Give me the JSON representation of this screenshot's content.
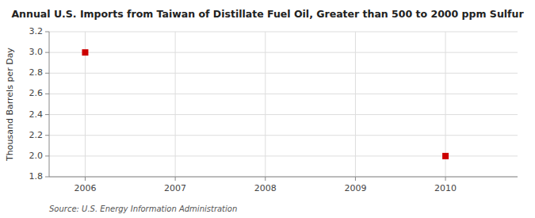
{
  "chart_data": {
    "type": "scatter",
    "title": "Annual U.S. Imports from Taiwan of Distillate Fuel Oil, Greater than 500 to 2000 ppm Sulfur",
    "ylabel": "Thousand Barrels per Day",
    "source": "Source: U.S. Energy Information Administration",
    "x": [
      2006,
      2010
    ],
    "values": [
      3.0,
      2.0
    ],
    "color": "#cc0000",
    "marker": "square",
    "xlim": [
      2005.6,
      2010.8
    ],
    "ylim": [
      1.8,
      3.2
    ],
    "xticks": [
      2006,
      2007,
      2008,
      2009,
      2010
    ],
    "yticks": [
      1.8,
      {
        "value": 2.0,
        "label": "2.0"
      },
      2.2,
      2.4,
      2.6,
      2.8,
      {
        "value": 3.0,
        "label": "3.0"
      },
      3.2
    ],
    "grid": true
  }
}
